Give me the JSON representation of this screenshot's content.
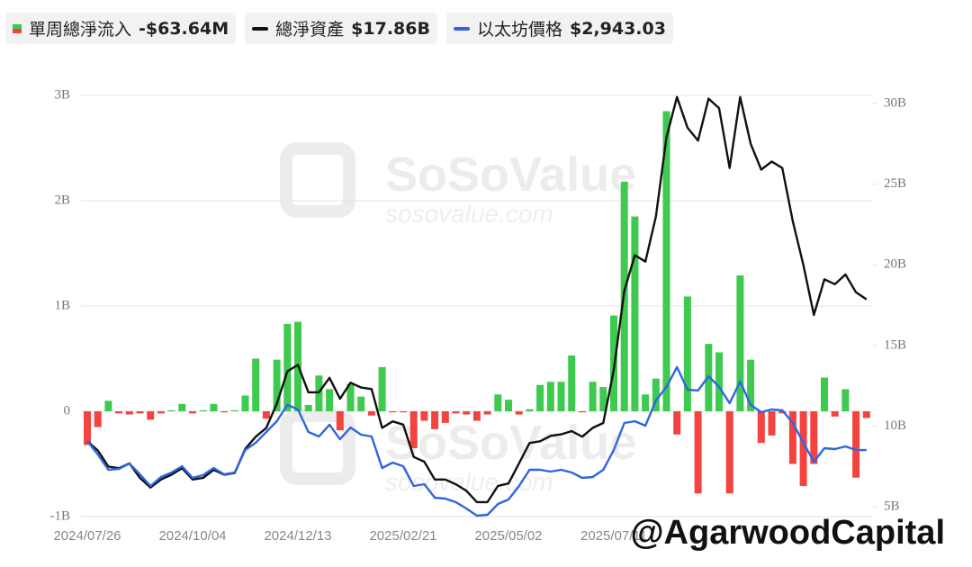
{
  "chart_data": {
    "type": "combo",
    "categories": [
      "2024/07/26",
      null,
      null,
      null,
      null,
      null,
      null,
      null,
      null,
      null,
      "2024/10/04",
      null,
      null,
      null,
      null,
      null,
      null,
      null,
      null,
      null,
      "2024/12/13",
      null,
      null,
      null,
      null,
      null,
      null,
      null,
      null,
      null,
      "2025/02/21",
      null,
      null,
      null,
      null,
      null,
      null,
      null,
      null,
      null,
      "2025/05/02",
      null,
      null,
      null,
      null,
      null,
      null,
      null,
      null,
      null,
      "2025/07/11",
      null,
      null,
      null,
      null,
      null,
      null,
      null,
      null,
      null,
      null,
      null,
      null,
      null,
      null,
      null,
      null,
      null,
      null,
      null,
      null,
      null,
      null,
      null,
      null
    ],
    "series": [
      {
        "name": "單周總淨流入",
        "legend_value": "-$63.64M",
        "type": "bar",
        "axis": "y",
        "color": "#3ec94f",
        "negative_color": "#f2433f",
        "values": [
          -0.32,
          -0.15,
          0.1,
          -0.02,
          -0.03,
          -0.02,
          -0.08,
          -0.02,
          0.01,
          0.07,
          -0.02,
          0.01,
          0.07,
          -0.01,
          0.01,
          0.15,
          0.5,
          -0.07,
          0.49,
          0.83,
          0.85,
          0.06,
          0.34,
          0.21,
          -0.18,
          0.26,
          0.14,
          -0.04,
          0.42,
          -0.01,
          -0.01,
          -0.35,
          -0.09,
          -0.17,
          -0.11,
          -0.02,
          -0.03,
          -0.09,
          -0.03,
          0.16,
          0.11,
          -0.03,
          0.02,
          0.25,
          0.28,
          0.28,
          0.53,
          -0.01,
          0.28,
          0.23,
          0.91,
          2.18,
          1.85,
          0.16,
          0.31,
          2.85,
          -0.22,
          1.09,
          -0.78,
          0.64,
          0.56,
          -0.78,
          1.29,
          0.49,
          -0.3,
          -0.23,
          -0.02,
          -0.5,
          -0.71,
          -0.5,
          0.32,
          -0.05,
          0.21,
          -0.63,
          -0.06364
        ]
      },
      {
        "name": "總淨資產",
        "legend_value": "$17.86B",
        "type": "line",
        "axis": "y2",
        "color": "#111111",
        "values": [
          9.07,
          8.5,
          7.5,
          7.4,
          7.7,
          6.8,
          6.2,
          6.7,
          7.0,
          7.4,
          6.7,
          6.8,
          7.3,
          7.0,
          7.1,
          8.6,
          9.35,
          9.9,
          11.4,
          13.4,
          13.8,
          12.1,
          12.1,
          13.0,
          11.7,
          12.7,
          12.4,
          12.3,
          9.9,
          10.3,
          10.1,
          8.1,
          7.8,
          6.7,
          6.7,
          6.4,
          6.0,
          5.3,
          5.3,
          6.3,
          6.45,
          7.7,
          8.96,
          9.07,
          9.4,
          9.5,
          9.7,
          9.35,
          9.9,
          10.2,
          13.5,
          18.4,
          20.6,
          20.2,
          23.0,
          27.9,
          30.4,
          28.5,
          27.7,
          30.3,
          29.7,
          26.0,
          30.4,
          27.5,
          25.9,
          26.4,
          26.0,
          22.7,
          20.0,
          16.9,
          19.1,
          18.8,
          19.4,
          18.3,
          17.86
        ]
      },
      {
        "name": "以太坊價格",
        "legend_value": "$2,943.03",
        "type": "line",
        "axis": "y3",
        "color": "#2e66e0",
        "values": [
          3147,
          2844,
          2500,
          2520,
          2642,
          2400,
          2137,
          2339,
          2440,
          2581,
          2319,
          2380,
          2541,
          2400,
          2440,
          2945,
          3107,
          3349,
          3591,
          3955,
          3854,
          3349,
          3248,
          3511,
          3187,
          3450,
          3288,
          3248,
          2541,
          2662,
          2581,
          2137,
          2177,
          1874,
          1854,
          1773,
          1632,
          1470,
          1490,
          1733,
          1834,
          2137,
          2500,
          2500,
          2460,
          2500,
          2440,
          2319,
          2339,
          2500,
          2945,
          3551,
          3591,
          3490,
          4056,
          4359,
          4803,
          4298,
          4278,
          4601,
          4359,
          3995,
          4480,
          3955,
          3793,
          3854,
          3834,
          3551,
          3107,
          2682,
          2985,
          2965,
          3026,
          2945,
          2943.03
        ]
      }
    ],
    "ylim": [
      -1,
      3
    ],
    "yticks": [
      {
        "value": -1,
        "label": "-1B"
      },
      0,
      {
        "value": 1,
        "label": "1B"
      },
      {
        "value": 2,
        "label": "2B"
      },
      {
        "value": 3,
        "label": "3B"
      }
    ],
    "y2lim": [
      4.4,
      30.5
    ],
    "y2ticks": [
      {
        "value": 5,
        "label": "5B"
      },
      {
        "value": 10,
        "label": "10B"
      },
      {
        "value": 15,
        "label": "15B"
      },
      {
        "value": 20,
        "label": "20B"
      },
      {
        "value": 25,
        "label": "25B"
      },
      {
        "value": 30,
        "label": "30B"
      }
    ],
    "y3lim": [
      1450,
      10900
    ],
    "grid": true,
    "watermark": "SoSoValue",
    "watermark_url": "sosovalue.com",
    "credit": "@AgarwoodCapital"
  }
}
